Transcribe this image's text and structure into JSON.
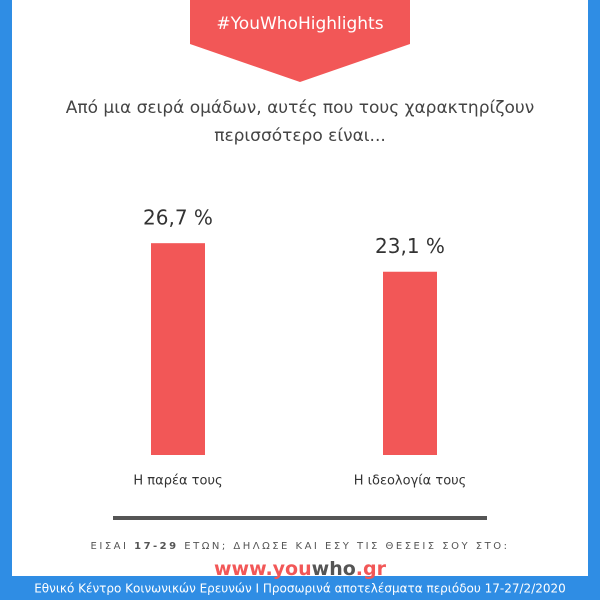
{
  "chart_data": {
    "type": "bar",
    "banner": "#YouWhoHighlights",
    "title": [
      "Από μια σειρά ομάδων, αυτές που τους χαρακτηρίζουν",
      "περισσότερο είναι..."
    ],
    "categories": [
      "Η παρέα τους",
      "Η ιδεολογία τους"
    ],
    "values": [
      26.7,
      23.1
    ],
    "value_labels": [
      "26,7 %",
      "23,1 %"
    ],
    "color": "#f25757",
    "ylim": [
      0,
      30
    ],
    "cta": [
      "ΕΙΣΑΙ ",
      "17-29",
      " ΕΤΩΝ; ΔΗΛΩΣΕ ΚΑΙ ΕΣΥ ΤΙΣ ΘΕΣΕΙΣ ΣΟΥ ΣΤΟ:"
    ],
    "url": [
      "www.you",
      "who",
      ".gr"
    ],
    "footer": "Εθνικό Κέντρο Κοινωνικών Ερευνών Ι Προσωρινά αποτελέσματα περιόδου 17-27/2/2020"
  }
}
